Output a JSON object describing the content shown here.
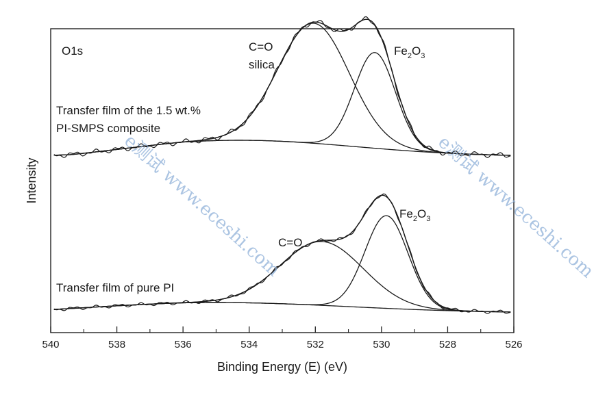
{
  "chart_data": {
    "type": "line",
    "title": "",
    "xlabel": "Binding Energy (E) (eV)",
    "ylabel": "Intensity",
    "panel_label": "O1s",
    "xlim": [
      540,
      526
    ],
    "x_reversed": true,
    "ylim": [
      0,
      1
    ],
    "grid": false,
    "x_ticks": [
      "540",
      "538",
      "536",
      "534",
      "532",
      "530",
      "528",
      "526"
    ],
    "x_tick_values": [
      540,
      538,
      536,
      534,
      532,
      530,
      528,
      526
    ],
    "annotations": {
      "top_label_1": "Transfer film of the 1.5 wt.%",
      "top_label_2": "PI-SMPS composite",
      "top_peak_1_a": "C=O",
      "top_peak_1_b": "silica",
      "top_peak_2_main": "Fe",
      "top_peak_2_sub1": "2",
      "top_peak_2_mid": "O",
      "top_peak_2_sub2": "3",
      "bottom_label": "Transfer film of pure PI",
      "bottom_peak_1": "C=O",
      "bottom_peak_2_main": "Fe",
      "bottom_peak_2_sub1": "2",
      "bottom_peak_2_mid": "O",
      "bottom_peak_2_sub2": "3"
    },
    "watermarks": [
      "e测试 www.eceshi.com",
      "e测试 www.eceshi.com"
    ],
    "spectra": [
      {
        "id": "top",
        "baseline": 0.58,
        "background": {
          "center": 534.3,
          "width": 3.5,
          "height": 0.053,
          "left_shift": -0.015
        },
        "components": [
          {
            "center": 532.05,
            "sigma": 1.08,
            "height": 0.395
          },
          {
            "center": 530.2,
            "sigma": 0.62,
            "height": 0.315
          }
        ],
        "noise_ripple": 0.006
      },
      {
        "id": "bottom",
        "baseline": 0.065,
        "background": {
          "center": 535.0,
          "width": 4.0,
          "height": 0.034,
          "left_shift": -0.005
        },
        "components": [
          {
            "center": 531.8,
            "sigma": 1.25,
            "height": 0.21
          },
          {
            "center": 529.85,
            "sigma": 0.65,
            "height": 0.305
          }
        ],
        "noise_ripple": 0.004
      }
    ]
  }
}
